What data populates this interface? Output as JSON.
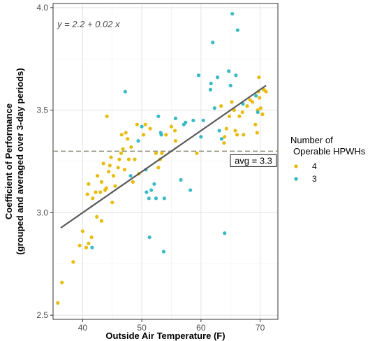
{
  "chart_data": {
    "type": "scatter",
    "xlabel": "Outside Air Temperature (F)",
    "ylabel_lines": [
      "Coefficient of Performance",
      "(grouped and averaged over 3-day periods)"
    ],
    "xlim": [
      35,
      73
    ],
    "ylim": [
      2.48,
      4.02
    ],
    "x_ticks": [
      40,
      50,
      60,
      70
    ],
    "y_ticks": [
      2.5,
      3.0,
      3.5,
      4.0
    ],
    "x_tick_labels": [
      "40",
      "50",
      "60",
      "70"
    ],
    "y_tick_labels": [
      "2.5",
      "3.0",
      "3.5",
      "4.0"
    ],
    "grid": true,
    "legend_title_lines": [
      "Number of",
      "Operable HPWHs"
    ],
    "legend_position": "right",
    "equation": "y = 2.2 + 0.02 x",
    "regression": {
      "intercept": 2.2,
      "slope": 0.02,
      "x_range": [
        36.3,
        71
      ],
      "color": "#595959"
    },
    "avg_line": {
      "y": 3.3,
      "label": "avg = 3.3",
      "color": "#8c8c7a"
    },
    "series": [
      {
        "name": "4",
        "color": "#E7B800",
        "points": [
          [
            35.8,
            2.56
          ],
          [
            36.5,
            2.66
          ],
          [
            38.4,
            2.76
          ],
          [
            39.5,
            2.84
          ],
          [
            40.0,
            2.91
          ],
          [
            40.6,
            2.83
          ],
          [
            41.0,
            2.85
          ],
          [
            40.8,
            3.09
          ],
          [
            41.0,
            3.14
          ],
          [
            41.5,
            2.88
          ],
          [
            41.7,
            3.07
          ],
          [
            42.2,
            3.1
          ],
          [
            42.4,
            2.98
          ],
          [
            42.5,
            3.18
          ],
          [
            43.0,
            3.1
          ],
          [
            43.2,
            3.15
          ],
          [
            43.2,
            2.96
          ],
          [
            43.5,
            3.24
          ],
          [
            43.8,
            3.11
          ],
          [
            44.0,
            3.12
          ],
          [
            44.1,
            3.47
          ],
          [
            44.4,
            3.2
          ],
          [
            44.6,
            3.23
          ],
          [
            44.8,
            3.27
          ],
          [
            45.0,
            3.05
          ],
          [
            45.2,
            3.18
          ],
          [
            45.5,
            3.13
          ],
          [
            46.0,
            3.22
          ],
          [
            46.2,
            3.26
          ],
          [
            46.5,
            3.29
          ],
          [
            46.6,
            3.38
          ],
          [
            46.8,
            3.31
          ],
          [
            47.1,
            3.21
          ],
          [
            47.3,
            3.39
          ],
          [
            47.6,
            3.36
          ],
          [
            47.8,
            3.26
          ],
          [
            48.2,
            3.32
          ],
          [
            48.5,
            3.15
          ],
          [
            48.8,
            3.26
          ],
          [
            49.2,
            3.43
          ],
          [
            49.5,
            3.19
          ],
          [
            50.3,
            3.38
          ],
          [
            50.6,
            3.43
          ],
          [
            51.4,
            3.41
          ],
          [
            52.4,
            3.29
          ],
          [
            52.8,
            3.22
          ],
          [
            53.1,
            3.26
          ],
          [
            53.4,
            3.29
          ],
          [
            54.1,
            3.38
          ],
          [
            55.0,
            3.42
          ],
          [
            55.6,
            3.4
          ],
          [
            55.7,
            3.35
          ],
          [
            59.3,
            3.29
          ],
          [
            63.4,
            3.52
          ],
          [
            63.9,
            3.34
          ],
          [
            64.0,
            3.37
          ],
          [
            64.3,
            3.41
          ],
          [
            64.8,
            3.47
          ],
          [
            65.2,
            3.54
          ],
          [
            65.6,
            3.5
          ],
          [
            65.8,
            3.4
          ],
          [
            66.1,
            3.38
          ],
          [
            66.5,
            3.47
          ],
          [
            67.0,
            3.49
          ],
          [
            67.2,
            3.38
          ],
          [
            67.8,
            3.52
          ],
          [
            68.3,
            3.55
          ],
          [
            68.7,
            3.54
          ],
          [
            69.2,
            3.43
          ],
          [
            69.5,
            3.39
          ],
          [
            69.6,
            3.5
          ],
          [
            69.7,
            3.59
          ],
          [
            69.8,
            3.66
          ],
          [
            69.9,
            3.56
          ],
          [
            70.1,
            3.51
          ],
          [
            70.4,
            3.48
          ],
          [
            70.6,
            3.6
          ],
          [
            71.0,
            3.59
          ]
        ]
      },
      {
        "name": "3",
        "color": "#2EB7C2",
        "points": [
          [
            41.6,
            2.83
          ],
          [
            47.2,
            3.59
          ],
          [
            48.1,
            3.18
          ],
          [
            49.4,
            3.35
          ],
          [
            50.0,
            3.42
          ],
          [
            50.7,
            3.21
          ],
          [
            50.8,
            3.1
          ],
          [
            51.2,
            3.07
          ],
          [
            51.3,
            2.88
          ],
          [
            51.6,
            3.11
          ],
          [
            52.1,
            3.14
          ],
          [
            52.4,
            3.07
          ],
          [
            52.8,
            3.47
          ],
          [
            53.2,
            3.39
          ],
          [
            53.3,
            3.38
          ],
          [
            53.7,
            2.81
          ],
          [
            53.8,
            3.07
          ],
          [
            55.7,
            3.46
          ],
          [
            56.6,
            3.16
          ],
          [
            57.1,
            3.43
          ],
          [
            57.4,
            3.44
          ],
          [
            58.2,
            3.11
          ],
          [
            58.7,
            3.45
          ],
          [
            59.6,
            3.67
          ],
          [
            60.0,
            3.37
          ],
          [
            60.4,
            3.45
          ],
          [
            61.6,
            3.6
          ],
          [
            61.7,
            3.63
          ],
          [
            62.0,
            3.83
          ],
          [
            62.3,
            3.51
          ],
          [
            62.8,
            3.66
          ],
          [
            63.1,
            3.4
          ],
          [
            63.5,
            3.36
          ],
          [
            64.0,
            2.9
          ],
          [
            64.7,
            3.69
          ],
          [
            65.0,
            3.62
          ],
          [
            65.3,
            3.97
          ],
          [
            65.9,
            3.67
          ],
          [
            66.2,
            3.89
          ],
          [
            67.1,
            3.53
          ],
          [
            69.3,
            3.57
          ],
          [
            69.6,
            3.49
          ]
        ]
      }
    ]
  }
}
